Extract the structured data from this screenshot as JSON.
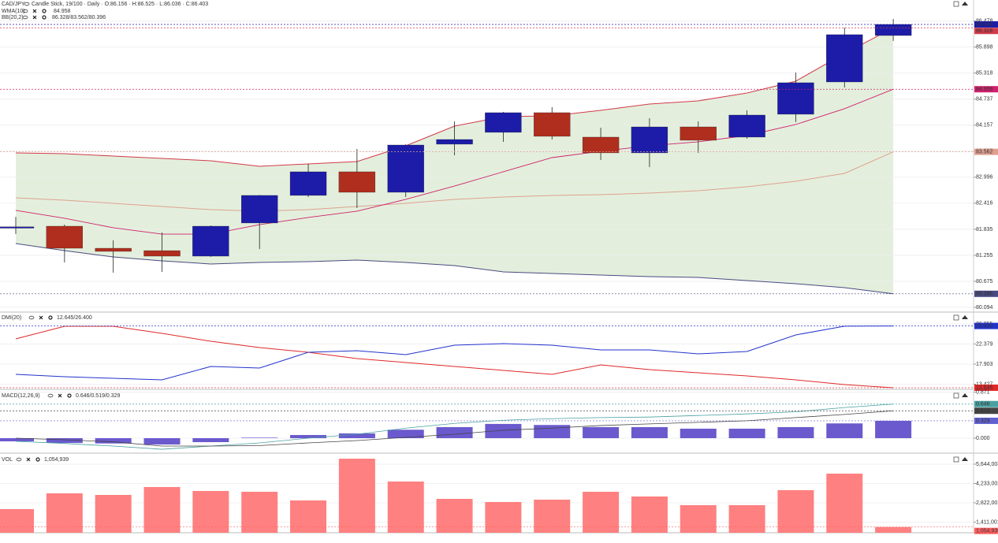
{
  "chart_data": [
    {
      "type": "candlestick",
      "title": "CAD/JPY",
      "subtitle": "Candle Stick, 19/100 · Daily · O:86.156 · H:86.525 · L:86.036 · C:86.403",
      "open": [
        81.86,
        81.904,
        81.412,
        81.359,
        81.236,
        81.975,
        82.59,
        83.117,
        82.66,
        83.732,
        83.996,
        84.435,
        83.89,
        83.539,
        84.118,
        83.89,
        84.4,
        85.12,
        86.156
      ],
      "high": [
        82.11,
        81.939,
        81.588,
        81.764,
        81.92,
        82.6,
        83.293,
        83.626,
        83.73,
        84.242,
        84.452,
        84.558,
        84.101,
        84.312,
        84.242,
        84.488,
        85.331,
        86.333,
        86.525
      ],
      "low": [
        81.73,
        81.096,
        80.867,
        80.885,
        81.22,
        81.395,
        82.555,
        82.308,
        82.555,
        83.486,
        83.785,
        83.837,
        83.381,
        83.222,
        83.539,
        83.855,
        84.224,
        84.997,
        86.036
      ],
      "close": [
        81.89,
        81.412,
        81.342,
        81.236,
        81.904,
        82.59,
        83.117,
        82.66,
        83.714,
        83.837,
        84.435,
        83.908,
        83.539,
        84.118,
        83.82,
        84.382,
        85.103,
        86.175,
        86.403
      ],
      "up_color": "#1c1ca8",
      "down_color": "#b02e1e",
      "wma": {
        "name": "WMA(10)",
        "color": "#d0206e",
        "values": [
          82.256,
          82.08,
          81.869,
          81.728,
          81.728,
          81.939,
          82.098,
          82.238,
          82.502,
          82.8,
          83.117,
          83.433,
          83.574,
          83.697,
          83.785,
          83.925,
          84.171,
          84.523,
          84.958
        ]
      },
      "bb": {
        "name": "BB(20,2)",
        "legend": "86.328/83.562/80.396",
        "fill": "#e3efdc",
        "upper": {
          "color": "#d23a4a",
          "values": [
            83.539,
            83.521,
            83.468,
            83.416,
            83.363,
            83.24,
            83.293,
            83.345,
            83.697,
            84.136,
            84.347,
            84.365,
            84.488,
            84.628,
            84.699,
            84.874,
            85.138,
            85.753,
            86.328
          ]
        },
        "middle": {
          "color": "#e0a090",
          "values": [
            82.537,
            82.484,
            82.414,
            82.344,
            82.273,
            82.238,
            82.273,
            82.344,
            82.414,
            82.502,
            82.554,
            82.59,
            82.607,
            82.642,
            82.695,
            82.783,
            82.906,
            83.082,
            83.562
          ]
        },
        "lower": {
          "color": "#4a4a80",
          "values": [
            81.518,
            81.359,
            81.219,
            81.131,
            81.061,
            81.096,
            81.113,
            81.148,
            81.096,
            81.025,
            80.885,
            80.85,
            80.815,
            80.779,
            80.762,
            80.692,
            80.621,
            80.533,
            80.396
          ]
        }
      },
      "ylim": [
        80.006,
        86.561
      ],
      "yticks": [
        80.094,
        80.675,
        81.255,
        81.835,
        82.416,
        82.996,
        83.577,
        84.157,
        84.737,
        85.318,
        85.898,
        86.478
      ],
      "grid": true
    },
    {
      "type": "line",
      "title": "DMI(20)",
      "legend": "12.645/26.400",
      "series": [
        {
          "color": "#e02828",
          "values": [
            23.52,
            26.328,
            26.328,
            24.749,
            22.993,
            21.589,
            20.536,
            19.132,
            18.254,
            17.377,
            16.499,
            15.621,
            17.728,
            16.674,
            15.972,
            15.27,
            14.392,
            13.339,
            12.645
          ]
        },
        {
          "color": "#2233cc",
          "values": [
            15.621,
            15.094,
            14.743,
            14.392,
            17.377,
            17.025,
            20.536,
            20.887,
            20.009,
            22.116,
            22.467,
            22.116,
            21.062,
            21.062,
            20.185,
            20.712,
            24.398,
            26.35,
            26.4
          ],
          "value_labels": [
            null,
            null,
            null,
            null,
            null,
            null,
            null,
            null,
            null,
            null,
            null,
            null,
            null,
            null,
            null,
            null,
            null,
            null,
            "26.400"
          ]
        }
      ],
      "ylim": [
        12.462,
        28.786
      ],
      "yticks": [
        13.427,
        17.903,
        22.379,
        26.855
      ],
      "grid": true
    },
    {
      "type": "combo",
      "title": "MACD(12,26,9)",
      "legend": "0.646/0.519/0.329",
      "series": [
        {
          "kind": "bar",
          "color": "#6a5acd",
          "values": [
            -0.06,
            -0.09,
            -0.1,
            -0.12,
            -0.075,
            0.01,
            0.06,
            0.09,
            0.16,
            0.21,
            0.27,
            0.25,
            0.21,
            0.21,
            0.18,
            0.18,
            0.21,
            0.28,
            0.329
          ]
        },
        {
          "kind": "line",
          "color": "#4aa0a0",
          "values": [
            -0.06,
            -0.1,
            -0.15,
            -0.21,
            -0.15,
            -0.09,
            0.0,
            0.075,
            0.19,
            0.28,
            0.34,
            0.37,
            0.39,
            0.4,
            0.43,
            0.46,
            0.5,
            0.58,
            0.646
          ]
        },
        {
          "kind": "line",
          "color": "#444444",
          "values": [
            0.0,
            -0.03,
            -0.07,
            -0.15,
            -0.15,
            -0.14,
            -0.09,
            -0.045,
            0.015,
            0.075,
            0.15,
            0.19,
            0.24,
            0.27,
            0.3,
            0.33,
            0.39,
            0.45,
            0.519
          ]
        }
      ],
      "ylim": [
        -0.269,
        0.896
      ],
      "yticks": [
        {
          "value": 0,
          "label": "0.000"
        },
        0.871
      ],
      "grid": true
    },
    {
      "type": "bar",
      "title": "VOL",
      "color": "#ff8080",
      "values": [
        2361400,
        3513200,
        3398100,
        3974300,
        3686500,
        3628200,
        2995400,
        6047300,
        4377100,
        3110200,
        2880100,
        3052400,
        3628900,
        3283100,
        2649200,
        2649800,
        3744500,
        4953100,
        1054939
      ],
      "value_labels": [
        null,
        null,
        null,
        null,
        null,
        null,
        null,
        null,
        null,
        null,
        null,
        null,
        null,
        null,
        null,
        null,
        null,
        null,
        "1,054,939"
      ],
      "ylim": [
        633500,
        6277000
      ],
      "yticks": [
        {
          "value": 1411001,
          "label": "1,411,001"
        },
        {
          "value": 2822001,
          "label": "2,822,001"
        },
        {
          "value": 4233002,
          "label": "4,233,002"
        },
        {
          "value": 5644003,
          "label": "5,644,003"
        }
      ],
      "grid": true
    }
  ]
}
